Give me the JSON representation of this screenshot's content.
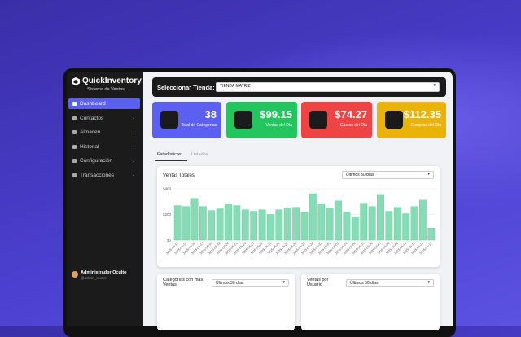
{
  "sidebar": {
    "brand": "QuickInventory",
    "subtitle": "Sistema de Ventas",
    "menu": [
      "Dashboard",
      "Contactos",
      "Almacen",
      "Historial",
      "Configuración",
      "Transacciones"
    ],
    "user": {
      "name": "Administrador Oculto",
      "handle": "@admin_secret"
    }
  },
  "topbar": {
    "label": "Seleccionar Tienda:",
    "store": "TIENDA MATRIZ"
  },
  "cards": [
    {
      "value": "38",
      "label": "Total de Categorías",
      "color": "#5b5ff2"
    },
    {
      "value": "$99.15",
      "label": "Ventas del Día",
      "color": "#22c55e"
    },
    {
      "value": "$74.27",
      "label": "Gastos del Día",
      "color": "#ef4444"
    },
    {
      "value": "$112.35",
      "label": "Compras del Día",
      "color": "#eab308"
    }
  ],
  "tabs": [
    "Estadísticas",
    "Listados"
  ],
  "sales_chart": {
    "type": "bar",
    "title": "Ventas Totales",
    "period": "Últimos 30 días",
    "color": "#86dcb4",
    "categories": [
      "2025-05-14",
      "2025-05-15",
      "2025-05-16",
      "2025-05-17",
      "2025-05-18",
      "2025-05-19",
      "2025-05-20",
      "2025-05-21",
      "2025-05-22",
      "2025-05-23",
      "2025-05-24",
      "2025-05-25",
      "2025-05-26",
      "2025-05-27",
      "2025-05-28",
      "2025-05-29",
      "2025-05-30",
      "2025-05-31",
      "2025-06-01",
      "2025-06-02",
      "2025-06-03",
      "2025-06-04",
      "2025-06-05",
      "2025-06-06",
      "2025-06-07",
      "2025-06-08",
      "2025-06-09",
      "2025-06-10",
      "2025-06-11",
      "2025-06-12",
      "2025-06-13"
    ],
    "values": [
      269,
      262,
      325,
      262,
      231,
      244,
      281,
      269,
      237,
      225,
      237,
      200,
      237,
      250,
      256,
      219,
      362,
      281,
      250,
      306,
      219,
      181,
      287,
      262,
      356,
      225,
      256,
      206,
      262,
      312,
      94
    ],
    "ylim": [
      0,
      400
    ],
    "yticks": [
      {
        "value": 0,
        "label": "$0"
      },
      {
        "value": 200,
        "label": "$200"
      },
      {
        "value": 400,
        "label": "$400"
      }
    ],
    "grid": true
  },
  "bottom_cards": [
    {
      "title": "Categorías con más Ventas",
      "period": "Últimos 30 días"
    },
    {
      "title": "Ventas por Usuario",
      "period": "Últimos 30 días"
    }
  ]
}
